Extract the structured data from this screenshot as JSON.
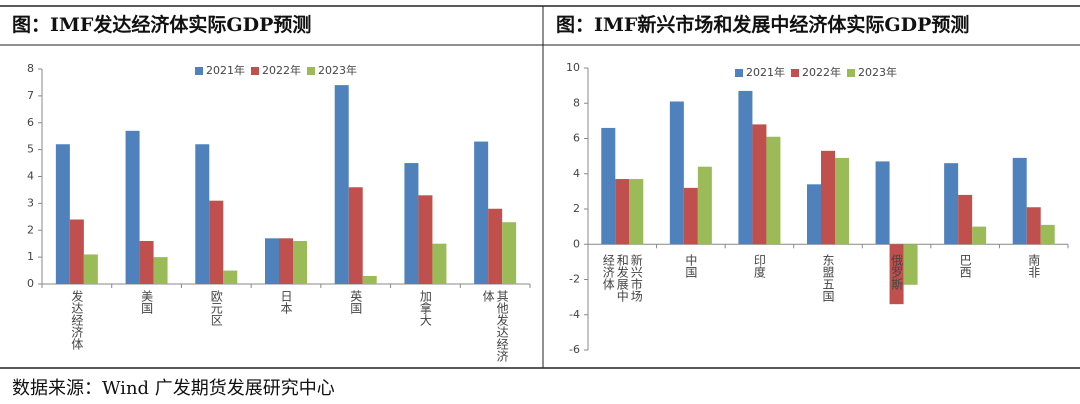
{
  "chart_data": [
    {
      "type": "bar",
      "title": "图：IMF发达经济体实际GDP预测",
      "categories": [
        "发达经济体",
        "美国",
        "欧元区",
        "日本",
        "英国",
        "加拿大",
        "其他发达经济体"
      ],
      "series": [
        {
          "name": "2021年",
          "color": "#4f81bd",
          "values": [
            5.2,
            5.7,
            5.2,
            1.7,
            7.4,
            4.5,
            5.3
          ]
        },
        {
          "name": "2022年",
          "color": "#c0504d",
          "values": [
            2.4,
            1.6,
            3.1,
            1.7,
            3.6,
            3.3,
            2.8
          ]
        },
        {
          "name": "2023年",
          "color": "#9bbb59",
          "values": [
            1.1,
            1.0,
            0.5,
            1.6,
            0.3,
            1.5,
            2.3
          ]
        }
      ],
      "ylim": [
        0,
        8
      ],
      "yticks": [
        0,
        1,
        2,
        3,
        4,
        5,
        6,
        7,
        8
      ]
    },
    {
      "type": "bar",
      "title": "图：IMF新兴市场和发展中经济体实际GDP预测",
      "categories": [
        "新兴市场和发展中经济体",
        "中国",
        "印度",
        "东盟五国",
        "俄罗斯",
        "巴西",
        "南非"
      ],
      "series": [
        {
          "name": "2021年",
          "color": "#4f81bd",
          "values": [
            6.6,
            8.1,
            8.7,
            3.4,
            4.7,
            4.6,
            4.9
          ]
        },
        {
          "name": "2022年",
          "color": "#c0504d",
          "values": [
            3.7,
            3.2,
            6.8,
            5.3,
            -3.4,
            2.8,
            2.1
          ]
        },
        {
          "name": "2023年",
          "color": "#9bbb59",
          "values": [
            3.7,
            4.4,
            6.1,
            4.9,
            -2.3,
            1.0,
            1.1
          ]
        }
      ],
      "ylim": [
        -6,
        10
      ],
      "yticks": [
        -6,
        -4,
        -2,
        0,
        2,
        4,
        6,
        8,
        10
      ]
    }
  ],
  "source": "数据来源：Wind 广发期货发展研究中心"
}
